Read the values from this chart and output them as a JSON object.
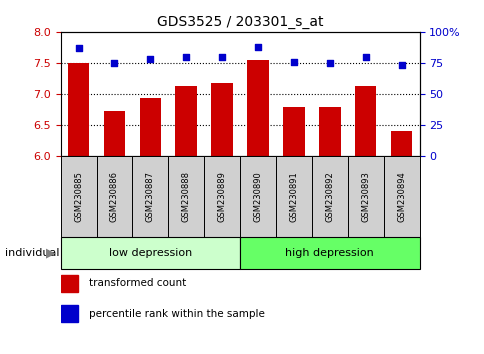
{
  "title": "GDS3525 / 203301_s_at",
  "samples": [
    "GSM230885",
    "GSM230886",
    "GSM230887",
    "GSM230888",
    "GSM230889",
    "GSM230890",
    "GSM230891",
    "GSM230892",
    "GSM230893",
    "GSM230894"
  ],
  "bar_values": [
    7.5,
    6.72,
    6.93,
    7.12,
    7.18,
    7.55,
    6.78,
    6.78,
    7.12,
    6.4
  ],
  "dot_values": [
    87,
    75,
    78,
    80,
    80,
    88,
    76,
    75,
    80,
    73
  ],
  "ylim_left": [
    6,
    8
  ],
  "ylim_right": [
    0,
    100
  ],
  "yticks_left": [
    6,
    6.5,
    7,
    7.5,
    8
  ],
  "yticks_right": [
    0,
    25,
    50,
    75,
    100
  ],
  "ytick_labels_right": [
    "0",
    "25",
    "50",
    "75",
    "100%"
  ],
  "bar_color": "#cc0000",
  "dot_color": "#0000cc",
  "group1_label": "low depression",
  "group2_label": "high depression",
  "group1_color": "#ccffcc",
  "group2_color": "#66ff66",
  "group1_indices": [
    0,
    1,
    2,
    3,
    4
  ],
  "group2_indices": [
    5,
    6,
    7,
    8,
    9
  ],
  "legend_bar_label": "transformed count",
  "legend_dot_label": "percentile rank within the sample",
  "individual_label": "individual",
  "bar_color_left_tick": "#cc0000",
  "dot_color_right_tick": "#0000cc",
  "bar_bottom": 6.0,
  "bar_width": 0.6,
  "label_bg_color": "#d0d0d0"
}
